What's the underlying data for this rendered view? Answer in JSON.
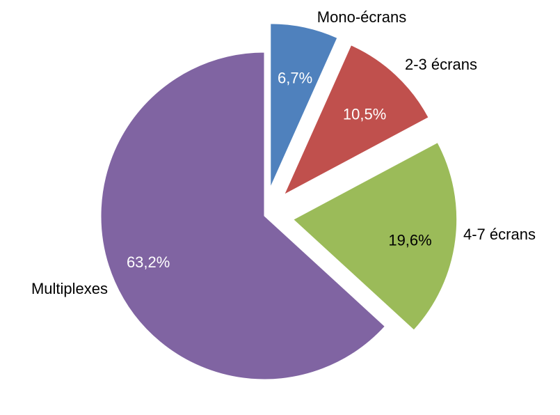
{
  "chart_data": {
    "type": "pie",
    "categories": [
      "Mono-écrans",
      "2-3 écrans",
      "4-7 écrans",
      "Multiplexes"
    ],
    "values": [
      6.7,
      10.5,
      19.6,
      63.2
    ],
    "value_labels": [
      "6,7%",
      "10,5%",
      "19,6%",
      "63,2%"
    ],
    "colors": [
      "#4f81bd",
      "#c0504d",
      "#9bbb59",
      "#8064a2"
    ]
  }
}
